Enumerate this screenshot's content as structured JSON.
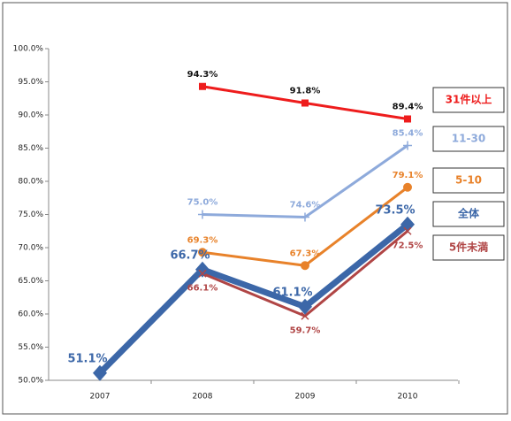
{
  "chart_data": {
    "type": "line",
    "categories": [
      "2007",
      "2008",
      "2009",
      "2010"
    ],
    "ylim": [
      50,
      100
    ],
    "yticks": [
      {
        "value": 50,
        "label": "50.0%"
      },
      {
        "value": 55,
        "label": "55.0%"
      },
      {
        "value": 60,
        "label": "60.0%"
      },
      {
        "value": 65,
        "label": "65.0%"
      },
      {
        "value": 70,
        "label": "70.0%"
      },
      {
        "value": 75,
        "label": "75.0%"
      },
      {
        "value": 80,
        "label": "80.0%"
      },
      {
        "value": 85,
        "label": "85.0%"
      },
      {
        "value": 90,
        "label": "90.0%"
      },
      {
        "value": 95,
        "label": "95.0%"
      },
      {
        "value": 100,
        "label": "100.0%"
      }
    ],
    "series": [
      {
        "name": "31件以上",
        "color": "#ee1c1c",
        "marker": "square",
        "line_width": 3,
        "values": [
          null,
          94.3,
          91.8,
          89.4
        ],
        "value_labels": [
          null,
          "94.3%",
          "91.8%",
          "89.4%"
        ]
      },
      {
        "name": "11-30",
        "color": "#8eaadb",
        "marker": "plus",
        "line_width": 3,
        "values": [
          null,
          75.0,
          74.6,
          85.4
        ],
        "value_labels": [
          null,
          "75.0%",
          "74.6%",
          "85.4%"
        ]
      },
      {
        "name": "5-10",
        "color": "#e8822a",
        "marker": "circle",
        "line_width": 3,
        "values": [
          null,
          69.3,
          67.3,
          79.1
        ],
        "value_labels": [
          null,
          "69.3%",
          "67.3%",
          "79.1%"
        ]
      },
      {
        "name": "全体",
        "color": "#3c67a8",
        "marker": "diamond",
        "line_width": 7,
        "values": [
          51.1,
          66.7,
          61.1,
          73.5
        ],
        "value_labels": [
          "51.1%",
          "66.7%",
          "61.1%",
          "73.5%"
        ]
      },
      {
        "name": "5件未満",
        "color": "#b04545",
        "marker": "cross",
        "line_width": 3,
        "values": [
          null,
          66.1,
          59.7,
          72.5
        ],
        "value_labels": [
          null,
          "66.1%",
          "59.7%",
          "72.5%"
        ]
      }
    ]
  }
}
